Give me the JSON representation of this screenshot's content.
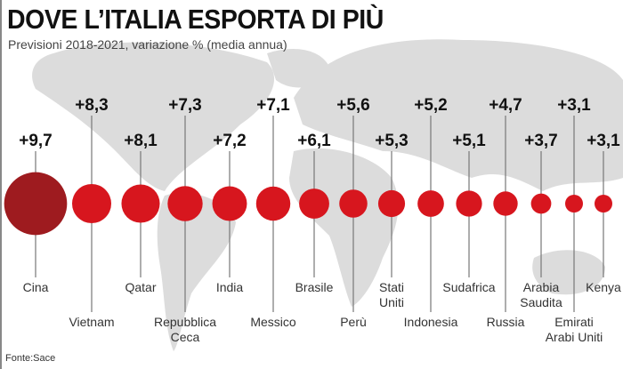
{
  "title": "DOVE L’ITALIA ESPORTA DI PIÙ",
  "subtitle": "Previsioni 2018-2021, variazione % (media annua)",
  "source": "Fonte:Sace",
  "colors": {
    "highlight": "#9e1b1f",
    "bubble": "#d7161e",
    "map": "#dcdcdc",
    "line": "#777777"
  },
  "chart_data": {
    "type": "bubble",
    "title": "DOVE L’ITALIA ESPORTA DI PIÙ",
    "subtitle": "Previsioni 2018-2021, variazione % (media annua)",
    "unit": "%",
    "categories": [
      "Cina",
      "Vietnam",
      "Qatar",
      "Repubblica Ceca",
      "India",
      "Messico",
      "Brasile",
      "Perù",
      "Stati Uniti",
      "Indonesia",
      "Sudafrica",
      "Russia",
      "Arabia Saudita",
      "Emirati Arabi Uniti",
      "Kenya"
    ],
    "label_lines": [
      [
        "Cina"
      ],
      [
        "Vietnam"
      ],
      [
        "Qatar"
      ],
      [
        "Repubblica",
        "Ceca"
      ],
      [
        "India"
      ],
      [
        "Messico"
      ],
      [
        "Brasile"
      ],
      [
        "Perù"
      ],
      [
        "Stati",
        "Uniti"
      ],
      [
        "Indonesia"
      ],
      [
        "Sudafrica"
      ],
      [
        "Russia"
      ],
      [
        "Arabia",
        "Saudita"
      ],
      [
        "Emirati",
        "Arabi Uniti"
      ],
      [
        "Kenya"
      ]
    ],
    "values": [
      9.7,
      8.3,
      8.1,
      7.3,
      7.2,
      7.1,
      6.1,
      5.6,
      5.3,
      5.2,
      5.1,
      4.7,
      3.7,
      3.1,
      3.1
    ],
    "value_labels": [
      "+9,7",
      "+8,3",
      "+8,1",
      "+7,3",
      "+7,2",
      "+7,1",
      "+6,1",
      "+5,6",
      "+5,3",
      "+5,2",
      "+5,1",
      "+4,7",
      "+3,7",
      "+3,1",
      "+3,1"
    ],
    "highlight_index": 0
  }
}
